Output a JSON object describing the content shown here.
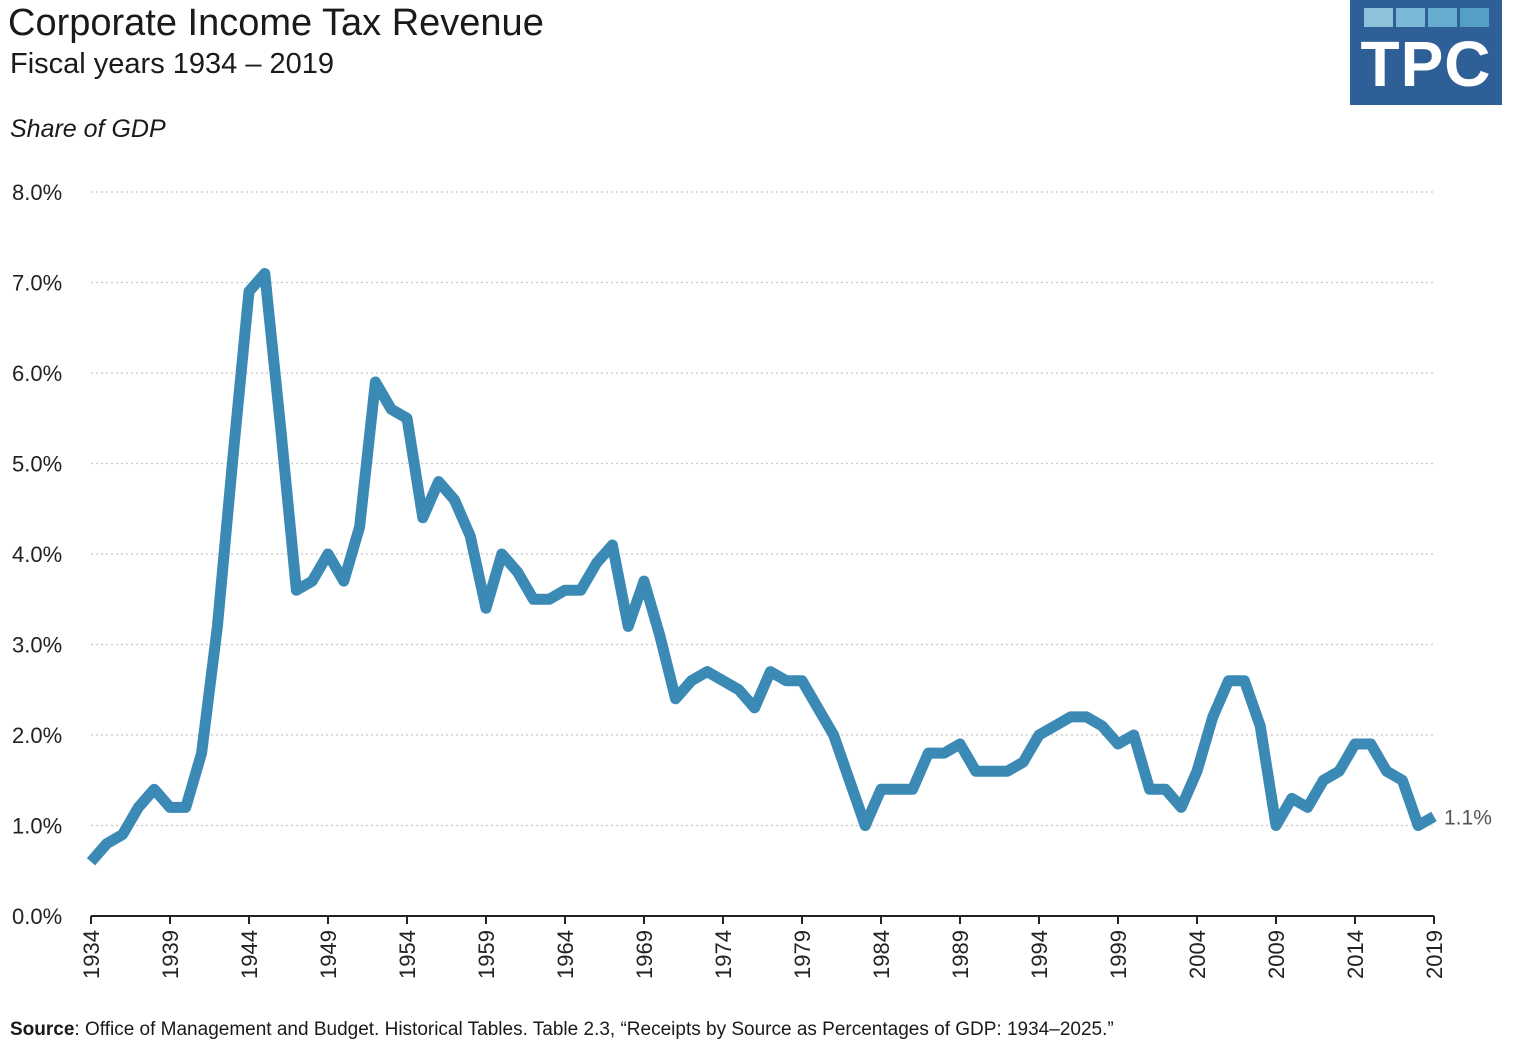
{
  "header": {
    "title": "Corporate Income Tax Revenue",
    "subtitle": "Fiscal years 1934 – 2019",
    "unit_label": "Share of GDP"
  },
  "logo": {
    "text": "TPC",
    "background": "#2f5f97",
    "square_colors": [
      "#8ec2dc",
      "#7ab8d6",
      "#66add0",
      "#549fc6"
    ]
  },
  "source": {
    "label": "Source",
    "text": ": Office of Management and Budget. Historical Tables. Table 2.3, “Receipts by Source as Percentages of GDP: 1934–2025.”"
  },
  "chart_data": {
    "type": "line",
    "title": "Corporate Income Tax Revenue",
    "subtitle": "Fiscal years 1934 – 2019",
    "ylabel": "Share of GDP",
    "ylim": [
      0,
      8
    ],
    "xlim": [
      1934,
      2019
    ],
    "y_ticks": [
      0,
      1,
      2,
      3,
      4,
      5,
      6,
      7,
      8
    ],
    "y_tick_labels": [
      "0.0%",
      "1.0%",
      "2.0%",
      "3.0%",
      "4.0%",
      "5.0%",
      "6.0%",
      "7.0%",
      "8.0%"
    ],
    "x_ticks": [
      1934,
      1939,
      1944,
      1949,
      1954,
      1959,
      1964,
      1969,
      1974,
      1979,
      1984,
      1989,
      1994,
      1999,
      2004,
      2009,
      2014,
      2019
    ],
    "x_tick_labels": [
      "1934",
      "1939",
      "1944",
      "1949",
      "1954",
      "1959",
      "1964",
      "1969",
      "1974",
      "1979",
      "1984",
      "1989",
      "1994",
      "1999",
      "2004",
      "2009",
      "2014",
      "2019"
    ],
    "grid": "horizontal dotted",
    "line_color": "#3a8ab5",
    "end_label": "1.1%",
    "series": [
      {
        "x": [
          1934,
          1935,
          1936,
          1937,
          1938,
          1939,
          1940,
          1941,
          1942,
          1943,
          1944,
          1945,
          1946,
          1947,
          1948,
          1949,
          1950,
          1951,
          1952,
          1953,
          1954,
          1955,
          1956,
          1957,
          1958,
          1959,
          1960,
          1961,
          1962,
          1963,
          1964,
          1965,
          1966,
          1967,
          1968,
          1969,
          1970,
          1971,
          1972,
          1973,
          1974,
          1975,
          1976,
          1977,
          1978,
          1979,
          1980,
          1981,
          1982,
          1983,
          1984,
          1985,
          1986,
          1987,
          1988,
          1989,
          1990,
          1991,
          1992,
          1993,
          1994,
          1995,
          1996,
          1997,
          1998,
          1999,
          2000,
          2001,
          2002,
          2003,
          2004,
          2005,
          2006,
          2007,
          2008,
          2009,
          2010,
          2011,
          2012,
          2013,
          2014,
          2015,
          2016,
          2017,
          2018,
          2019
        ],
        "values": [
          0.6,
          0.8,
          0.9,
          1.2,
          1.4,
          1.2,
          1.2,
          1.8,
          3.2,
          5.1,
          6.9,
          7.1,
          5.4,
          3.6,
          3.7,
          4.0,
          3.7,
          4.3,
          5.9,
          5.6,
          5.5,
          4.4,
          4.8,
          4.6,
          4.2,
          3.4,
          4.0,
          3.8,
          3.5,
          3.5,
          3.6,
          3.6,
          3.9,
          4.1,
          3.2,
          3.7,
          3.1,
          2.4,
          2.6,
          2.7,
          2.6,
          2.5,
          2.3,
          2.7,
          2.6,
          2.6,
          2.3,
          2.0,
          1.5,
          1.0,
          1.4,
          1.4,
          1.4,
          1.8,
          1.8,
          1.9,
          1.6,
          1.6,
          1.6,
          1.7,
          2.0,
          2.1,
          2.2,
          2.2,
          2.1,
          1.9,
          2.0,
          1.4,
          1.4,
          1.2,
          1.6,
          2.2,
          2.6,
          2.6,
          2.1,
          1.0,
          1.3,
          1.2,
          1.5,
          1.6,
          1.9,
          1.9,
          1.6,
          1.5,
          1.0,
          1.1
        ]
      }
    ]
  }
}
